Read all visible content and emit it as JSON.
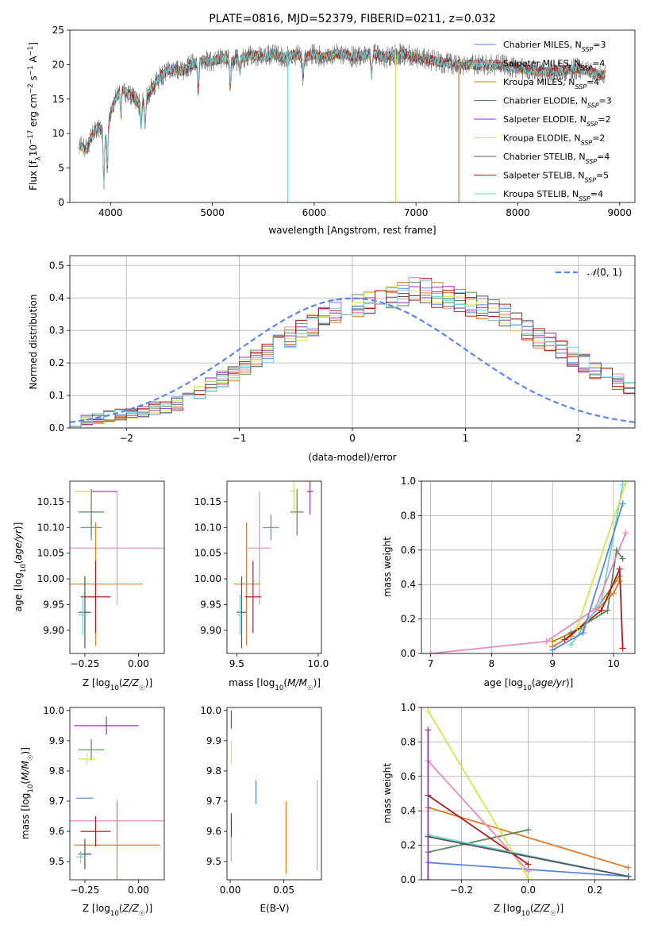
{
  "figure": {
    "title": "PLATE=0816, MJD=52379, FIBERID=0211, z=0.032"
  },
  "colors": {
    "blue": "#5b86e5",
    "pink": "#e98ac0",
    "orange": "#e07b2a",
    "green": "#5a8a5a",
    "purple": "#9b2fb5",
    "yellow": "#d9e54a",
    "gray": "#555555",
    "red": "#b01c1c",
    "cyan": "#6fd3d8"
  },
  "chart_data": [
    {
      "id": "spectrum",
      "type": "line",
      "title": "PLATE=0816, MJD=52379, FIBERID=0211, z=0.032",
      "xlabel": "wavelength [Angstrom, rest frame]",
      "ylabel": "Flux [f_λ 10^-17 erg cm^-2 s^-1 A^-1]",
      "xlim": [
        3600,
        9150
      ],
      "ylim": [
        0,
        25
      ],
      "xticks": [
        4000,
        5000,
        6000,
        7000,
        8000,
        9000
      ],
      "yticks": [
        0,
        5,
        10,
        15,
        20,
        25
      ],
      "legend_position": "top-right",
      "series": [
        {
          "name": "Chabrier MILES, N_SSP=3",
          "color": "#5b86e5"
        },
        {
          "name": "Salpeter MILES, N_SSP=4",
          "color": "#e98ac0"
        },
        {
          "name": "Kroupa MILES, N_SSP=4",
          "color": "#b8860b"
        },
        {
          "name": "Chabrier ELODIE, N_SSP=3",
          "color": "#5a8a5a"
        },
        {
          "name": "Salpeter ELODIE, N_SSP=2",
          "color": "#9b2fb5"
        },
        {
          "name": "Kroupa ELODIE, N_SSP=2",
          "color": "#d9e54a"
        },
        {
          "name": "Chabrier STELIB, N_SSP=4",
          "color": "#555555"
        },
        {
          "name": "Salpeter STELIB, N_SSP=5",
          "color": "#b01c1c"
        },
        {
          "name": "Kroupa STELIB, N_SSP=4",
          "color": "#6fd3d8"
        }
      ],
      "continuum": {
        "x": [
          3690,
          3750,
          3800,
          3850,
          3900,
          3950,
          4000,
          4050,
          4100,
          4200,
          4300,
          4400,
          4500,
          4600,
          4700,
          4800,
          4900,
          5000,
          5100,
          5200,
          5300,
          5400,
          5500,
          5600,
          5700,
          5800,
          5900,
          6000,
          6100,
          6200,
          6300,
          6400,
          6500,
          6600,
          6700,
          6800,
          6900,
          7000,
          7200,
          7400,
          7600,
          7800,
          8000,
          8200,
          8400,
          8600,
          8800
        ],
        "y": [
          8.5,
          7.5,
          9.0,
          10.5,
          11.0,
          9.5,
          13.0,
          15.0,
          16.5,
          15.5,
          14.0,
          16.5,
          18.5,
          19.5,
          19.0,
          20.0,
          20.5,
          20.5,
          21.0,
          20.5,
          21.0,
          21.5,
          21.0,
          21.5,
          21.0,
          21.5,
          21.0,
          21.5,
          21.0,
          21.5,
          21.5,
          21.0,
          21.5,
          21.5,
          21.0,
          21.5,
          21.5,
          21.0,
          20.5,
          20.0,
          20.0,
          20.0,
          19.5,
          19.0,
          19.0,
          19.5,
          18.5
        ]
      },
      "dropouts": [
        {
          "x": 5740,
          "color": "#6fd3d8"
        },
        {
          "x": 6800,
          "color": "#d9e54a"
        },
        {
          "x": 7420,
          "color": "#e07b2a"
        }
      ]
    },
    {
      "id": "residual_hist",
      "type": "line",
      "xlabel": "(data-model)/error",
      "ylabel": "Normed distribution",
      "xlim": [
        -2.5,
        2.5
      ],
      "ylim": [
        0,
        0.53
      ],
      "xticks": [
        -2,
        -1,
        0,
        1,
        2
      ],
      "yticks": [
        0.0,
        0.1,
        0.2,
        0.3,
        0.4,
        0.5
      ],
      "reference": {
        "name": "N(0,1)",
        "color": "#5b86e5",
        "style": "dashed"
      },
      "legend_position": "top-right",
      "bin_width": 0.1,
      "bin_start": -2.5,
      "base_density": [
        0.02,
        0.025,
        0.03,
        0.035,
        0.04,
        0.045,
        0.05,
        0.06,
        0.065,
        0.075,
        0.09,
        0.11,
        0.13,
        0.15,
        0.17,
        0.19,
        0.21,
        0.23,
        0.26,
        0.28,
        0.3,
        0.32,
        0.34,
        0.36,
        0.37,
        0.38,
        0.39,
        0.4,
        0.4,
        0.41,
        0.43,
        0.42,
        0.41,
        0.4,
        0.39,
        0.38,
        0.37,
        0.36,
        0.35,
        0.33,
        0.3,
        0.28,
        0.26,
        0.24,
        0.22,
        0.2,
        0.18,
        0.16,
        0.14,
        0.12,
        0.1
      ]
    },
    {
      "id": "age_vs_Z",
      "type": "scatter",
      "xlabel": "Z [log10(Z/Z☉)]",
      "ylabel": "age  [log10(age/yr)]",
      "xlim": [
        -0.32,
        0.12
      ],
      "ylim": [
        9.855,
        10.19
      ],
      "xticks": [
        -0.25,
        0.0
      ],
      "yticks": [
        9.9,
        9.95,
        10.0,
        10.05,
        10.1,
        10.15
      ],
      "points": [
        {
          "x": -0.22,
          "y": 10.1,
          "xerr": 0.05,
          "yerr": 0.025,
          "color": "#5b86e5"
        },
        {
          "x": -0.1,
          "y": 10.06,
          "xerr": 0.22,
          "yerr": 0.11,
          "color": "#e98ac0"
        },
        {
          "x": -0.2,
          "y": 9.99,
          "xerr": 0.22,
          "yerr": 0.12,
          "color": "#e07b2a"
        },
        {
          "x": -0.22,
          "y": 10.13,
          "xerr": 0.06,
          "yerr": 0.045,
          "color": "#5a8a5a"
        },
        {
          "x": -0.2,
          "y": 10.17,
          "xerr": 0.1,
          "yerr": 0.0,
          "color": "#9b2fb5"
        },
        {
          "x": -0.26,
          "y": 10.17,
          "xerr": 0.04,
          "yerr": 0.0,
          "color": "#d9e54a"
        },
        {
          "x": -0.25,
          "y": 9.935,
          "xerr": 0.03,
          "yerr": 0.07,
          "color": "#555555"
        },
        {
          "x": -0.2,
          "y": 9.965,
          "xerr": 0.07,
          "yerr": 0.07,
          "color": "#b01c1c"
        },
        {
          "x": -0.26,
          "y": 9.93,
          "xerr": 0.02,
          "yerr": 0.04,
          "color": "#6fd3d8"
        }
      ]
    },
    {
      "id": "age_vs_mass",
      "type": "scatter",
      "xlabel": "mass [log10(M/M☉)]",
      "ylabel": "",
      "xlim": [
        9.44,
        10.02
      ],
      "ylim": [
        9.855,
        10.19
      ],
      "xticks": [
        9.5,
        10.0
      ],
      "yticks": [
        9.9,
        9.95,
        10.0,
        10.05,
        10.1,
        10.15
      ],
      "points": [
        {
          "x": 9.71,
          "y": 10.1,
          "xerr": 0.05,
          "yerr": 0.025,
          "color": "#5b86e5"
        },
        {
          "x": 9.64,
          "y": 10.06,
          "xerr": 0.07,
          "yerr": 0.11,
          "color": "#e98ac0"
        },
        {
          "x": 9.56,
          "y": 9.99,
          "xerr": 0.08,
          "yerr": 0.12,
          "color": "#e07b2a"
        },
        {
          "x": 9.87,
          "y": 10.13,
          "xerr": 0.04,
          "yerr": 0.045,
          "color": "#5a8a5a"
        },
        {
          "x": 9.95,
          "y": 10.17,
          "xerr": 0.02,
          "yerr": 0.045,
          "color": "#9b2fb5"
        },
        {
          "x": 9.85,
          "y": 10.17,
          "xerr": 0.02,
          "yerr": 0.045,
          "color": "#d9e54a"
        },
        {
          "x": 9.53,
          "y": 9.935,
          "xerr": 0.03,
          "yerr": 0.07,
          "color": "#555555"
        },
        {
          "x": 9.6,
          "y": 9.965,
          "xerr": 0.05,
          "yerr": 0.07,
          "color": "#b01c1c"
        },
        {
          "x": 9.52,
          "y": 9.93,
          "xerr": 0.02,
          "yerr": 0.04,
          "color": "#6fd3d8"
        }
      ]
    },
    {
      "id": "weight_vs_age",
      "type": "line",
      "xlabel": "age  [log10(age/yr)]",
      "ylabel": "mass weight",
      "xlim": [
        6.85,
        10.35
      ],
      "ylim": [
        0,
        1.0
      ],
      "xticks": [
        7,
        8,
        9,
        10
      ],
      "yticks": [
        0.0,
        0.2,
        0.4,
        0.6,
        0.8,
        1.0
      ],
      "series": [
        {
          "color": "#b8860b",
          "x": [
            9.0,
            9.5,
            10.1
          ],
          "y": [
            0.07,
            0.15,
            0.45
          ]
        },
        {
          "color": "#e07b2a",
          "x": [
            9.0,
            9.3,
            10.0,
            10.1
          ],
          "y": [
            0.04,
            0.1,
            0.35,
            0.42
          ]
        },
        {
          "color": "#5a8a5a",
          "x": [
            9.3,
            9.9,
            10.05,
            10.15
          ],
          "y": [
            0.12,
            0.25,
            0.6,
            0.55
          ]
        },
        {
          "color": "#b01c1c",
          "x": [
            9.2,
            9.8,
            10.1,
            10.15
          ],
          "y": [
            0.08,
            0.25,
            0.49,
            0.03
          ]
        },
        {
          "color": "#6fd3d8",
          "x": [
            9.3,
            9.8,
            10.15
          ],
          "y": [
            0.05,
            0.3,
            0.98
          ]
        },
        {
          "color": "#d9e54a",
          "x": [
            9.4,
            10.2
          ],
          "y": [
            0.15,
            0.99
          ]
        },
        {
          "color": "#5b86e5",
          "x": [
            9.0,
            9.5,
            10.15
          ],
          "y": [
            0.02,
            0.12,
            0.87
          ]
        },
        {
          "color": "#e98ac0",
          "x": [
            7.0,
            8.9,
            9.7,
            10.2
          ],
          "y": [
            0.0,
            0.07,
            0.26,
            0.7
          ]
        }
      ]
    },
    {
      "id": "mass_vs_Z",
      "type": "scatter",
      "xlabel": "Z [log10(Z/Z☉)]",
      "ylabel": "mass [log10(M/M☉)]",
      "xlim": [
        -0.32,
        0.12
      ],
      "ylim": [
        9.44,
        10.01
      ],
      "xticks": [
        -0.25,
        0.0
      ],
      "yticks": [
        9.5,
        9.6,
        9.7,
        9.8,
        9.9,
        10.0
      ],
      "points": [
        {
          "x": -0.25,
          "y": 9.71,
          "xerr": 0.04,
          "yerr": 0.0,
          "color": "#5b86e5"
        },
        {
          "x": -0.1,
          "y": 9.635,
          "xerr": 0.22,
          "yerr": 0.07,
          "color": "#e98ac0"
        },
        {
          "x": -0.1,
          "y": 9.555,
          "xerr": 0.2,
          "yerr": 0.14,
          "color": "#e07b2a"
        },
        {
          "x": -0.22,
          "y": 9.87,
          "xerr": 0.06,
          "yerr": 0.035,
          "color": "#5a8a5a"
        },
        {
          "x": -0.15,
          "y": 9.95,
          "xerr": 0.15,
          "yerr": 0.03,
          "color": "#9b2fb5"
        },
        {
          "x": -0.24,
          "y": 9.84,
          "xerr": 0.04,
          "yerr": 0.02,
          "color": "#d9e54a"
        },
        {
          "x": -0.25,
          "y": 9.525,
          "xerr": 0.03,
          "yerr": 0.05,
          "color": "#555555"
        },
        {
          "x": -0.2,
          "y": 9.6,
          "xerr": 0.07,
          "yerr": 0.05,
          "color": "#b01c1c"
        },
        {
          "x": -0.27,
          "y": 9.515,
          "xerr": 0.02,
          "yerr": 0.02,
          "color": "#6fd3d8"
        }
      ]
    },
    {
      "id": "mass_vs_ebv",
      "type": "scatter",
      "xlabel": "E(B-V)",
      "ylabel": "",
      "xlim": [
        -0.003,
        0.085
      ],
      "ylim": [
        9.44,
        10.01
      ],
      "xticks": [
        0.0,
        0.05
      ],
      "yticks": [
        9.5,
        9.6,
        9.7,
        9.8,
        9.9,
        10.0
      ],
      "points": [
        {
          "x": 0.024,
          "y": 9.73,
          "xerr": 0.0,
          "yerr": 0.04,
          "color": "#5b86e5"
        },
        {
          "x": 0.081,
          "y": 9.62,
          "xerr": 0.0,
          "yerr": 0.15,
          "color": "#e98ac0"
        },
        {
          "x": 0.052,
          "y": 9.58,
          "xerr": 0.0,
          "yerr": 0.12,
          "color": "#e07b2a"
        },
        {
          "x": 0.001,
          "y": 9.97,
          "xerr": 0.0,
          "yerr": 0.03,
          "color": "#9b2fb5"
        },
        {
          "x": 0.001,
          "y": 9.86,
          "xerr": 0.0,
          "yerr": 0.04,
          "color": "#d9e54a"
        },
        {
          "x": 0.001,
          "y": 9.62,
          "xerr": 0.0,
          "yerr": 0.04,
          "color": "#b01c1c"
        },
        {
          "x": 0.001,
          "y": 9.54,
          "xerr": 0.0,
          "yerr": 0.04,
          "color": "#6fd3d8"
        }
      ]
    },
    {
      "id": "weight_vs_Z",
      "type": "line",
      "xlabel": "Z [log10(Z/Z☉)]",
      "ylabel": "mass weight",
      "xlim": [
        -0.32,
        0.32
      ],
      "ylim": [
        0,
        1.0
      ],
      "xticks": [
        -0.2,
        0.0,
        0.2
      ],
      "yticks": [
        0.0,
        0.2,
        0.4,
        0.6,
        0.8,
        1.0
      ],
      "series": [
        {
          "color": "#5b86e5",
          "x": [
            -0.3,
            0.0,
            0.3
          ],
          "y": [
            0.1,
            0.06,
            0.02
          ]
        },
        {
          "color": "#e07b2a",
          "x": [
            -0.3,
            0.3
          ],
          "y": [
            0.42,
            0.07
          ]
        },
        {
          "color": "#5a8a5a",
          "x": [
            -0.3,
            0.0
          ],
          "y": [
            0.16,
            0.29
          ]
        },
        {
          "color": "#d9e54a",
          "x": [
            -0.3,
            0.0
          ],
          "y": [
            0.98,
            0.01
          ]
        },
        {
          "color": "#e98ac0",
          "x": [
            -0.3,
            0.0
          ],
          "y": [
            0.69,
            0.05
          ]
        },
        {
          "color": "#b01c1c",
          "x": [
            -0.3,
            0.0
          ],
          "y": [
            0.49,
            0.09
          ]
        },
        {
          "color": "#6fd3d8",
          "x": [
            -0.3,
            0.3
          ],
          "y": [
            0.26,
            0.02
          ]
        },
        {
          "color": "#555555",
          "x": [
            -0.3,
            0.3
          ],
          "y": [
            0.25,
            0.02
          ]
        },
        {
          "color": "#9b2fb5",
          "x": [
            -0.3,
            -0.3
          ],
          "y": [
            0.0,
            0.87
          ]
        }
      ]
    }
  ]
}
